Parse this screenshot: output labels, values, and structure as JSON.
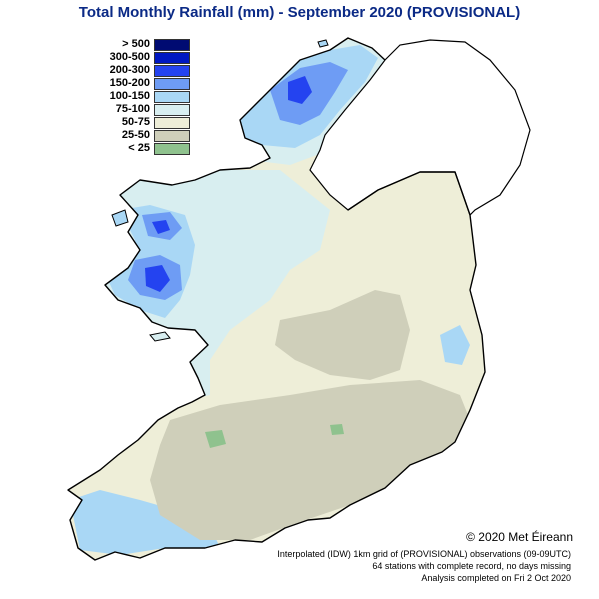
{
  "title": "Total Monthly Rainfall (mm) - September 2020 (PROVISIONAL)",
  "legend": [
    {
      "label": "> 500",
      "color": "#000b72"
    },
    {
      "label": "300-500",
      "color": "#0018c2"
    },
    {
      "label": "200-300",
      "color": "#2443f0"
    },
    {
      "label": "150-200",
      "color": "#6e9cf4"
    },
    {
      "label": "100-150",
      "color": "#a9d7f5"
    },
    {
      "label": "75-100",
      "color": "#d8eef0"
    },
    {
      "label": "50-75",
      "color": "#eeeed8"
    },
    {
      "label": "25-50",
      "color": "#cfcfba"
    },
    {
      "label": "< 25",
      "color": "#8fc28e"
    }
  ],
  "copyright": "© 2020 Met Éireann",
  "footnotes": [
    "Interpolated (IDW) 1km grid of (PROVISIONAL) observations (09-09UTC)",
    "64 stations with complete record, no days missing",
    "Analysis completed on Fri  2 Oct 2020"
  ],
  "colors": {
    "coastline": "#000000",
    "sea": "#ffffff"
  }
}
